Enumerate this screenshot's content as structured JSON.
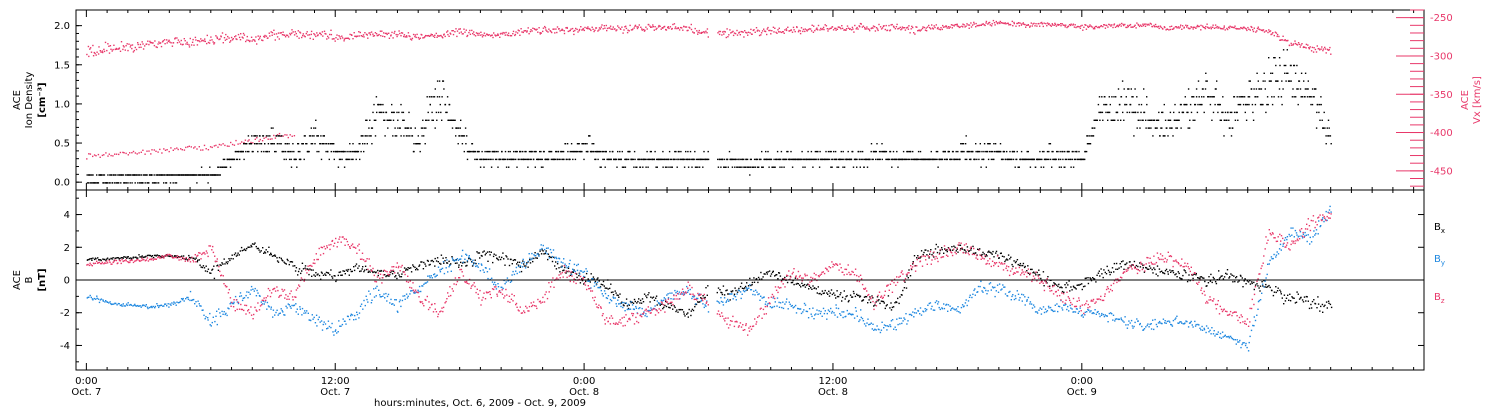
{
  "chart_data": [
    {
      "type": "scatter",
      "panel": "top",
      "ylabel_left_lines": [
        "ACE",
        "Ion Density",
        "[cm⁻³]"
      ],
      "ylabel_right_lines": [
        "ACE",
        "Vx [km/s]"
      ],
      "ylim_left": [
        -0.1,
        2.2
      ],
      "yticks_left": [
        "0.0",
        "0.5",
        "1.0",
        "1.5",
        "2.0"
      ],
      "yticks_left_values": [
        0.0,
        0.5,
        1.0,
        1.5,
        2.0
      ],
      "ylim_right": [
        -475,
        -240
      ],
      "yticks_right": [
        "-250",
        "-300",
        "-350",
        "-400",
        "-450"
      ],
      "yticks_right_values": [
        -250,
        -300,
        -350,
        -400,
        -450
      ],
      "x_range_hours": [
        -0.5,
        64.5
      ],
      "data_gaps_hours": [
        [
          30.0,
          30.4
        ]
      ],
      "series": [
        {
          "key": "density",
          "color": "#000000",
          "axis": "left",
          "note_levels": "density is quantized in 0.1 steps",
          "x": [
            0,
            2,
            4,
            6,
            7,
            8,
            9,
            10,
            11,
            12,
            13,
            14,
            15,
            16,
            17,
            18,
            19,
            20,
            21,
            22,
            23,
            24,
            25,
            26,
            27,
            28,
            29,
            30,
            31,
            32,
            33,
            34,
            35,
            36,
            37,
            38,
            39,
            40,
            41,
            42,
            43,
            44,
            45,
            46,
            47,
            48,
            49,
            50,
            51,
            52,
            53,
            54,
            55,
            56,
            57,
            58,
            59,
            60
          ],
          "y": [
            0.05,
            0.05,
            0.08,
            0.1,
            0.3,
            0.5,
            0.55,
            0.35,
            0.6,
            0.4,
            0.35,
            0.9,
            0.8,
            0.5,
            1.2,
            0.6,
            0.3,
            0.3,
            0.35,
            0.3,
            0.35,
            0.45,
            0.35,
            0.3,
            0.3,
            0.3,
            0.3,
            0.3,
            0.25,
            0.25,
            0.3,
            0.3,
            0.3,
            0.3,
            0.3,
            0.35,
            0.3,
            0.3,
            0.3,
            0.4,
            0.35,
            0.4,
            0.3,
            0.3,
            0.35,
            0.3,
            1.0,
            1.0,
            0.9,
            0.7,
            0.9,
            1.2,
            0.8,
            1.1,
            1.2,
            1.4,
            1.1,
            0.6
          ],
          "spread": [
            0.05,
            0.05,
            0.08,
            0.1,
            0.15,
            0.2,
            0.25,
            0.2,
            0.3,
            0.25,
            0.2,
            0.35,
            0.35,
            0.3,
            0.45,
            0.3,
            0.15,
            0.15,
            0.2,
            0.15,
            0.2,
            0.25,
            0.2,
            0.15,
            0.15,
            0.15,
            0.15,
            0.15,
            0.15,
            0.15,
            0.15,
            0.15,
            0.15,
            0.15,
            0.15,
            0.2,
            0.15,
            0.15,
            0.15,
            0.2,
            0.2,
            0.2,
            0.15,
            0.15,
            0.2,
            0.15,
            0.35,
            0.4,
            0.35,
            0.3,
            0.35,
            0.45,
            0.35,
            0.4,
            0.45,
            0.45,
            0.4,
            0.3
          ]
        },
        {
          "key": "vx",
          "color": "#e8386a",
          "axis": "right",
          "x": [
            0,
            1,
            2,
            3,
            4,
            5,
            6,
            7,
            8,
            9,
            10,
            11,
            12,
            13,
            14,
            15,
            16,
            17,
            18,
            19,
            20,
            21,
            22,
            23,
            24,
            25,
            26,
            27,
            28,
            29,
            30,
            31,
            32,
            33,
            34,
            35,
            36,
            37,
            38,
            39,
            40,
            41,
            42,
            43,
            44,
            45,
            46,
            47,
            48,
            49,
            50,
            51,
            52,
            53,
            54,
            55,
            56,
            57,
            58,
            59,
            60
          ],
          "y": [
            -295,
            -290,
            -288,
            -285,
            -282,
            -280,
            -278,
            -275,
            -277,
            -273,
            -272,
            -270,
            -275,
            -272,
            -270,
            -271,
            -274,
            -272,
            -268,
            -270,
            -271,
            -268,
            -266,
            -265,
            -264,
            -263,
            -265,
            -262,
            -262,
            -263,
            -270,
            -270,
            -268,
            -266,
            -265,
            -264,
            -263,
            -262,
            -263,
            -262,
            -265,
            -262,
            -260,
            -258,
            -257,
            -258,
            -259,
            -258,
            -262,
            -260,
            -260,
            -259,
            -262,
            -262,
            -261,
            -263,
            -263,
            -267,
            -282,
            -288,
            -292
          ],
          "spread": [
            14,
            12,
            10,
            10,
            9,
            9,
            9,
            9,
            9,
            9,
            9,
            8,
            9,
            8,
            8,
            8,
            8,
            8,
            8,
            8,
            8,
            8,
            8,
            8,
            7,
            7,
            8,
            7,
            7,
            7,
            9,
            8,
            8,
            7,
            7,
            7,
            7,
            7,
            7,
            7,
            8,
            7,
            6,
            6,
            6,
            6,
            6,
            5,
            5,
            5,
            5,
            5,
            5,
            5,
            5,
            5,
            5,
            6,
            7,
            7,
            7
          ]
        },
        {
          "key": "vx-low-branch",
          "color": "#e8386a",
          "axis": "right",
          "x": [
            0,
            1,
            2,
            3,
            4,
            5,
            6,
            7,
            8,
            9,
            10
          ],
          "y": [
            -430,
            -428,
            -426,
            -424,
            -422,
            -420,
            -418,
            -414,
            -410,
            -405,
            -400
          ],
          "spread": [
            5,
            5,
            5,
            5,
            5,
            5,
            5,
            6,
            6,
            6,
            6
          ]
        }
      ]
    },
    {
      "type": "scatter",
      "panel": "bottom",
      "ylabel_lines": [
        "ACE",
        "B",
        "[nT]"
      ],
      "ylim": [
        -5.5,
        5.5
      ],
      "yticks": [
        "4",
        "2",
        "0",
        "-2",
        "-4"
      ],
      "yticks_values": [
        4,
        2,
        0,
        -2,
        -4
      ],
      "zero_line": true,
      "x_range_hours": [
        -0.5,
        64.5
      ],
      "data_gaps_hours": [
        [
          30.0,
          30.4
        ]
      ],
      "legend_placement": "right",
      "series": [
        {
          "key": "bx",
          "label_main": "B",
          "label_sub": "x",
          "color": "#000000",
          "x": [
            0,
            1,
            2,
            3,
            4,
            5,
            6,
            7,
            8,
            9,
            10,
            11,
            12,
            13,
            14,
            15,
            16,
            17,
            18,
            19,
            20,
            21,
            22,
            23,
            24,
            25,
            26,
            27,
            28,
            29,
            30,
            31,
            32,
            33,
            34,
            35,
            36,
            37,
            38,
            39,
            40,
            41,
            42,
            43,
            44,
            45,
            46,
            47,
            48,
            49,
            50,
            51,
            52,
            53,
            54,
            55,
            56,
            57,
            58,
            59,
            60
          ],
          "y": [
            1.3,
            1.3,
            1.4,
            1.5,
            1.5,
            1.4,
            0.5,
            1.5,
            2.2,
            1.5,
            0.8,
            0.5,
            0.3,
            0.8,
            0.5,
            0.3,
            1.0,
            1.2,
            1.0,
            1.5,
            1.5,
            0.8,
            1.8,
            0.5,
            0.2,
            -0.2,
            -1.5,
            -1.0,
            -1.5,
            -2.0,
            -0.5,
            -0.8,
            -0.2,
            0.5,
            0.0,
            -0.5,
            -0.8,
            -1.0,
            -1.2,
            -1.5,
            1.5,
            1.8,
            2.0,
            1.8,
            1.5,
            1.0,
            0.2,
            -0.5,
            -0.3,
            0.5,
            1.0,
            0.8,
            0.5,
            0.3,
            0.0,
            0.3,
            0.0,
            -0.5,
            -1.0,
            -1.5,
            -1.5
          ],
          "spread": [
            0.15,
            0.15,
            0.15,
            0.15,
            0.15,
            0.2,
            0.6,
            0.4,
            0.4,
            0.5,
            0.5,
            0.5,
            0.5,
            0.5,
            0.5,
            0.5,
            0.5,
            0.5,
            0.5,
            0.5,
            0.5,
            0.5,
            0.4,
            0.5,
            0.5,
            0.5,
            0.5,
            0.5,
            0.5,
            0.4,
            0.5,
            0.5,
            0.5,
            0.5,
            0.5,
            0.5,
            0.5,
            0.5,
            0.5,
            0.5,
            0.5,
            0.5,
            0.4,
            0.4,
            0.5,
            0.5,
            0.5,
            0.5,
            0.5,
            0.5,
            0.5,
            0.5,
            0.5,
            0.5,
            0.5,
            0.5,
            0.5,
            0.6,
            0.7,
            0.8,
            0.6
          ]
        },
        {
          "key": "by",
          "label_main": "B",
          "label_sub": "y",
          "color": "#1f88e0",
          "x": [
            0,
            1,
            2,
            3,
            4,
            5,
            6,
            7,
            8,
            9,
            10,
            11,
            12,
            13,
            14,
            15,
            16,
            17,
            18,
            19,
            20,
            21,
            22,
            23,
            24,
            25,
            26,
            27,
            28,
            29,
            30,
            31,
            32,
            33,
            34,
            35,
            36,
            37,
            38,
            39,
            40,
            41,
            42,
            43,
            44,
            45,
            46,
            47,
            48,
            49,
            50,
            51,
            52,
            53,
            54,
            55,
            56,
            57,
            58,
            59,
            60
          ],
          "y": [
            -1.0,
            -1.3,
            -1.5,
            -1.6,
            -1.5,
            -1.0,
            -2.5,
            -1.5,
            -0.5,
            -2.0,
            -1.5,
            -2.5,
            -3.0,
            -2.0,
            -0.5,
            -1.5,
            -0.5,
            0.5,
            1.5,
            1.0,
            -0.5,
            1.0,
            2.0,
            1.0,
            0.5,
            -1.0,
            -1.5,
            -2.0,
            -1.0,
            -0.8,
            -1.5,
            -1.0,
            -0.5,
            -1.5,
            -1.5,
            -2.0,
            -2.0,
            -2.0,
            -3.0,
            -2.5,
            -2.0,
            -1.5,
            -1.8,
            -0.5,
            -0.5,
            -1.0,
            -1.8,
            -1.5,
            -2.0,
            -2.0,
            -2.5,
            -2.8,
            -2.5,
            -2.5,
            -3.0,
            -3.5,
            -4.0,
            1.0,
            3.0,
            2.5,
            4.5
          ],
          "spread": [
            0.2,
            0.2,
            0.2,
            0.2,
            0.3,
            0.4,
            0.6,
            0.6,
            0.6,
            0.6,
            0.6,
            0.6,
            0.5,
            0.6,
            0.6,
            0.6,
            0.6,
            0.6,
            0.6,
            0.6,
            0.6,
            0.6,
            0.5,
            0.6,
            0.6,
            0.6,
            0.6,
            0.5,
            0.6,
            0.6,
            0.6,
            0.6,
            0.6,
            0.6,
            0.6,
            0.6,
            0.6,
            0.6,
            0.5,
            0.6,
            0.6,
            0.6,
            0.5,
            0.6,
            0.6,
            0.6,
            0.6,
            0.6,
            0.5,
            0.5,
            0.5,
            0.4,
            0.4,
            0.4,
            0.4,
            0.4,
            0.4,
            0.7,
            0.6,
            0.6,
            0.6
          ]
        },
        {
          "key": "bz",
          "label_main": "B",
          "label_sub": "z",
          "color": "#e8386a",
          "x": [
            0,
            1,
            2,
            3,
            4,
            5,
            6,
            7,
            8,
            9,
            10,
            11,
            12,
            13,
            14,
            15,
            16,
            17,
            18,
            19,
            20,
            21,
            22,
            23,
            24,
            25,
            26,
            27,
            28,
            29,
            30,
            31,
            32,
            33,
            34,
            35,
            36,
            37,
            38,
            39,
            40,
            41,
            42,
            43,
            44,
            45,
            46,
            47,
            48,
            49,
            50,
            51,
            52,
            53,
            54,
            55,
            56,
            57,
            58,
            59,
            60
          ],
          "y": [
            1.0,
            1.1,
            1.2,
            1.3,
            1.5,
            1.2,
            2.0,
            -1.5,
            -2.0,
            -0.5,
            -1.0,
            1.5,
            2.5,
            2.0,
            0.0,
            1.0,
            -1.0,
            -2.0,
            0.5,
            -1.0,
            -0.5,
            -2.0,
            -1.0,
            0.5,
            0.0,
            -2.5,
            -2.5,
            -2.0,
            -1.5,
            -0.5,
            -1.5,
            -2.5,
            -3.0,
            -1.0,
            0.5,
            0.0,
            1.0,
            0.5,
            -1.5,
            0.0,
            1.0,
            1.5,
            2.0,
            1.5,
            1.0,
            0.5,
            0.0,
            -1.0,
            -1.5,
            -1.0,
            0.5,
            1.0,
            1.5,
            1.0,
            -1.0,
            -2.0,
            -2.5,
            3.0,
            2.0,
            3.5,
            4.0
          ],
          "spread": [
            0.2,
            0.2,
            0.2,
            0.2,
            0.2,
            0.4,
            0.6,
            0.6,
            0.6,
            0.6,
            0.6,
            0.6,
            0.6,
            0.6,
            0.6,
            0.6,
            0.6,
            0.6,
            0.6,
            0.6,
            0.6,
            0.6,
            0.6,
            0.6,
            0.6,
            0.6,
            0.6,
            0.6,
            0.6,
            0.6,
            0.6,
            0.6,
            0.5,
            0.6,
            0.6,
            0.6,
            0.6,
            0.6,
            0.6,
            0.6,
            0.6,
            0.6,
            0.6,
            0.6,
            0.6,
            0.6,
            0.6,
            0.6,
            0.6,
            0.6,
            0.6,
            0.6,
            0.6,
            0.6,
            0.6,
            0.6,
            0.5,
            0.7,
            0.6,
            0.6,
            0.6
          ]
        }
      ]
    }
  ],
  "x_axis": {
    "ticks": [
      {
        "hours": 0,
        "time": "0:00",
        "date": "Oct. 7"
      },
      {
        "hours": 12,
        "time": "12:00",
        "date": "Oct. 7"
      },
      {
        "hours": 24,
        "time": "0:00",
        "date": "Oct. 8"
      },
      {
        "hours": 36,
        "time": "12:00",
        "date": "Oct. 8"
      },
      {
        "hours": 48,
        "time": "0:00",
        "date": "Oct. 9"
      }
    ],
    "minor_step_hours": 1,
    "title": "hours:minutes, Oct.  6, 2009 - Oct.  9, 2009"
  },
  "colors": {
    "black": "#000000",
    "blue": "#1f88e0",
    "pink": "#e8386a"
  }
}
